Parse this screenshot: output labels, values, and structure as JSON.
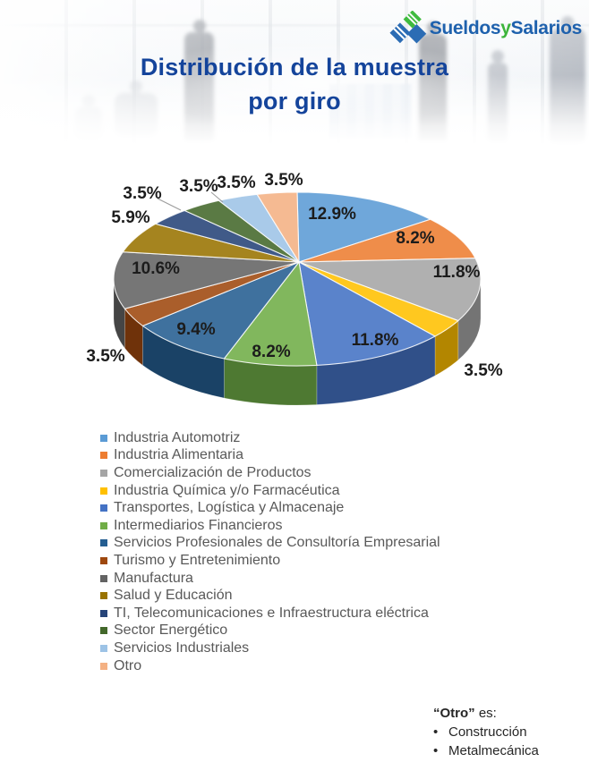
{
  "logo": {
    "part1": "Sueldos",
    "part2": "y",
    "part3": "Salarios",
    "blue": "#1E61AD",
    "green": "#3CB43A"
  },
  "title": {
    "line1": "Distribución de la muestra",
    "line2": "por giro",
    "color": "#14449B"
  },
  "chart_data": {
    "type": "pie",
    "is_3d": true,
    "title": "Distribución de la muestra por giro",
    "legend_position": "bottom-left",
    "start_angle_deg": 0,
    "direction": "clockwise",
    "label_format": "percent_one_decimal",
    "slices": [
      {
        "label": "Industria Automotriz",
        "pct": 12.9,
        "color": "#5B9BD5"
      },
      {
        "label": "Industria Alimentaria",
        "pct": 8.2,
        "color": "#ED7D31"
      },
      {
        "label": "Comercialización de Productos",
        "pct": 11.8,
        "color": "#A5A5A5"
      },
      {
        "label": "Industria Química y/o Farmacéutica",
        "pct": 3.5,
        "color": "#FFC000"
      },
      {
        "label": "Transportes, Logística y Almacenaje",
        "pct": 11.8,
        "color": "#4472C4"
      },
      {
        "label": "Intermediarios Financieros",
        "pct": 8.2,
        "color": "#70AD47"
      },
      {
        "label": "Servicios Profesionales de Consultoría Empresarial",
        "pct": 9.4,
        "color": "#255E91"
      },
      {
        "label": "Turismo y Entretenimiento",
        "pct": 3.5,
        "color": "#9E480E"
      },
      {
        "label": "Manufactura",
        "pct": 10.6,
        "color": "#636363"
      },
      {
        "label": "Salud y Educación",
        "pct": 5.9,
        "color": "#997300"
      },
      {
        "label": "TI, Telecomunicaciones e Infraestructura eléctrica",
        "pct": 3.5,
        "color": "#264478"
      },
      {
        "label": "Sector Energético",
        "pct": 3.5,
        "color": "#43682B"
      },
      {
        "label": "Servicios Industriales",
        "pct": 3.5,
        "color": "#9DC3E6"
      },
      {
        "label": "Otro",
        "pct": 3.5,
        "color": "#F4B183"
      }
    ]
  },
  "note": {
    "term": "“Otro”",
    "suffix": " es:",
    "items": [
      "Construcción",
      "Metalmecánica"
    ]
  }
}
